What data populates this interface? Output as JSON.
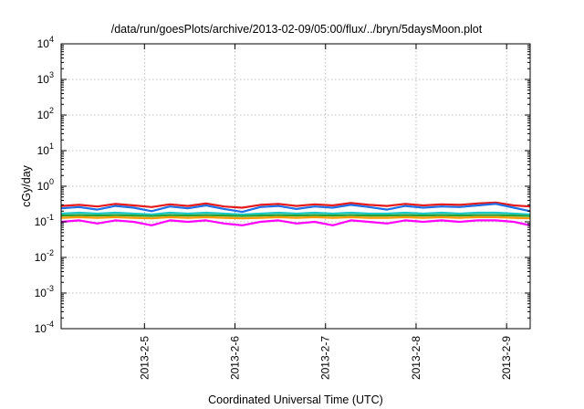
{
  "chart_data": {
    "type": "line",
    "title": "/data/run/goesPlots/archive/2013-02-09/05:00/flux/../bryn/5daysMoon.plot",
    "xlabel": "Coordinated Universal Time (UTC)",
    "ylabel": "cGy/day",
    "xlim": [
      2013.408,
      2013.926
    ],
    "ylim": [
      0.0001,
      10000
    ],
    "yscale": "log",
    "grid": true,
    "legend": "none",
    "x_ticks": [
      {
        "value": 2013.5,
        "label": "2013-2-5"
      },
      {
        "value": 2013.6,
        "label": "2013-2-6"
      },
      {
        "value": 2013.7,
        "label": "2013-2-7"
      },
      {
        "value": 2013.8,
        "label": "2013-2-8"
      },
      {
        "value": 2013.9,
        "label": "2013-2-9"
      }
    ],
    "y_ticks": [
      {
        "value": 0.0001,
        "base": "10",
        "exp": "-4"
      },
      {
        "value": 0.001,
        "base": "10",
        "exp": "-3"
      },
      {
        "value": 0.01,
        "base": "10",
        "exp": "-2"
      },
      {
        "value": 0.1,
        "base": "10",
        "exp": "-1"
      },
      {
        "value": 1,
        "base": "10",
        "exp": "0"
      },
      {
        "value": 10,
        "base": "10",
        "exp": "1"
      },
      {
        "value": 100,
        "base": "10",
        "exp": "2"
      },
      {
        "value": 1000,
        "base": "10",
        "exp": "3"
      },
      {
        "value": 10000,
        "base": "10",
        "exp": "4"
      }
    ],
    "x": [
      2013.408,
      2013.428,
      2013.448,
      2013.468,
      2013.488,
      2013.508,
      2013.528,
      2013.548,
      2013.568,
      2013.588,
      2013.608,
      2013.628,
      2013.648,
      2013.668,
      2013.688,
      2013.708,
      2013.728,
      2013.748,
      2013.768,
      2013.788,
      2013.808,
      2013.828,
      2013.848,
      2013.868,
      2013.888,
      2013.908,
      2013.926
    ],
    "series": [
      {
        "color": "#e41a1c",
        "values": [
          0.28,
          0.3,
          0.27,
          0.32,
          0.29,
          0.26,
          0.31,
          0.28,
          0.33,
          0.27,
          0.25,
          0.3,
          0.32,
          0.28,
          0.31,
          0.29,
          0.34,
          0.3,
          0.28,
          0.32,
          0.29,
          0.31,
          0.3,
          0.33,
          0.35,
          0.29,
          0.27
        ]
      },
      {
        "color": "#1f6fe6",
        "values": [
          0.24,
          0.26,
          0.22,
          0.28,
          0.25,
          0.2,
          0.27,
          0.24,
          0.29,
          0.23,
          0.19,
          0.26,
          0.28,
          0.23,
          0.27,
          0.25,
          0.3,
          0.26,
          0.22,
          0.28,
          0.25,
          0.27,
          0.26,
          0.29,
          0.32,
          0.25,
          0.2
        ]
      },
      {
        "color": "#19c7c7",
        "values": [
          0.17,
          0.18,
          0.17,
          0.18,
          0.17,
          0.16,
          0.18,
          0.17,
          0.18,
          0.17,
          0.16,
          0.17,
          0.18,
          0.17,
          0.18,
          0.17,
          0.18,
          0.17,
          0.17,
          0.18,
          0.17,
          0.18,
          0.17,
          0.18,
          0.18,
          0.17,
          0.16
        ]
      },
      {
        "color": "#2ca02c",
        "values": [
          0.15,
          0.155,
          0.15,
          0.155,
          0.15,
          0.145,
          0.155,
          0.15,
          0.155,
          0.15,
          0.145,
          0.15,
          0.155,
          0.15,
          0.155,
          0.15,
          0.155,
          0.15,
          0.15,
          0.155,
          0.15,
          0.155,
          0.15,
          0.155,
          0.155,
          0.15,
          0.145
        ]
      },
      {
        "color": "#ff9900",
        "values": [
          0.13,
          0.135,
          0.13,
          0.135,
          0.13,
          0.125,
          0.135,
          0.13,
          0.135,
          0.13,
          0.125,
          0.13,
          0.135,
          0.13,
          0.135,
          0.13,
          0.135,
          0.13,
          0.13,
          0.135,
          0.13,
          0.135,
          0.13,
          0.135,
          0.135,
          0.13,
          0.125
        ]
      },
      {
        "color": "#ff00ff",
        "values": [
          0.1,
          0.11,
          0.09,
          0.11,
          0.1,
          0.08,
          0.11,
          0.1,
          0.11,
          0.09,
          0.08,
          0.1,
          0.11,
          0.09,
          0.1,
          0.08,
          0.11,
          0.1,
          0.09,
          0.11,
          0.1,
          0.11,
          0.1,
          0.11,
          0.11,
          0.1,
          0.08
        ]
      }
    ]
  }
}
